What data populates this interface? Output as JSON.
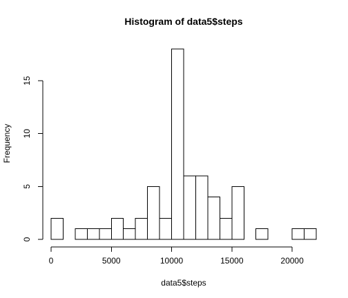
{
  "chart_data": {
    "type": "bar",
    "title": "Histogram of data5$steps",
    "xlabel": "data5$steps",
    "ylabel": "Frequency",
    "bins": [
      {
        "start": 0,
        "end": 1000,
        "count": 2
      },
      {
        "start": 1000,
        "end": 2000,
        "count": 0
      },
      {
        "start": 2000,
        "end": 3000,
        "count": 1
      },
      {
        "start": 3000,
        "end": 4000,
        "count": 1
      },
      {
        "start": 4000,
        "end": 5000,
        "count": 1
      },
      {
        "start": 5000,
        "end": 6000,
        "count": 2
      },
      {
        "start": 6000,
        "end": 7000,
        "count": 1
      },
      {
        "start": 7000,
        "end": 8000,
        "count": 2
      },
      {
        "start": 8000,
        "end": 9000,
        "count": 5
      },
      {
        "start": 9000,
        "end": 10000,
        "count": 2
      },
      {
        "start": 10000,
        "end": 11000,
        "count": 18
      },
      {
        "start": 11000,
        "end": 12000,
        "count": 6
      },
      {
        "start": 12000,
        "end": 13000,
        "count": 6
      },
      {
        "start": 13000,
        "end": 14000,
        "count": 4
      },
      {
        "start": 14000,
        "end": 15000,
        "count": 2
      },
      {
        "start": 15000,
        "end": 16000,
        "count": 5
      },
      {
        "start": 16000,
        "end": 17000,
        "count": 0
      },
      {
        "start": 17000,
        "end": 18000,
        "count": 1
      },
      {
        "start": 18000,
        "end": 19000,
        "count": 0
      },
      {
        "start": 19000,
        "end": 20000,
        "count": 0
      },
      {
        "start": 20000,
        "end": 21000,
        "count": 1
      },
      {
        "start": 21000,
        "end": 22000,
        "count": 1
      }
    ],
    "xlim": [
      0,
      22000
    ],
    "ylim": [
      0,
      18
    ],
    "x_ticks": [
      0,
      5000,
      10000,
      15000,
      20000
    ],
    "y_ticks": [
      0,
      5,
      10,
      15
    ],
    "grid": false,
    "legend": "none",
    "bar_fill": "#ffffff",
    "bar_stroke": "#000000"
  }
}
